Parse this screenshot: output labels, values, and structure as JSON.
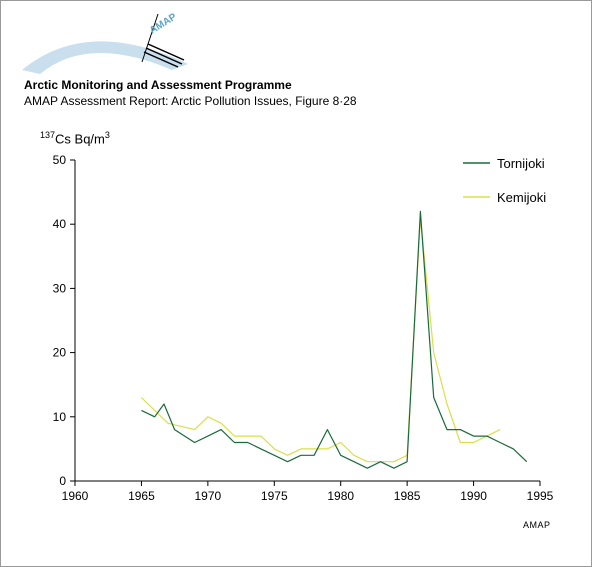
{
  "header": {
    "logo_text": "AMAP",
    "title": "Arctic Monitoring and Assessment Programme",
    "subtitle": "AMAP Assessment Report: Arctic Pollution Issues, Figure 8·28"
  },
  "credit": "AMAP",
  "colors": {
    "tornijoki": "#1a6b3a",
    "kemijoki": "#d9e04a",
    "arc": "#c9dfee"
  },
  "chart_data": {
    "type": "line",
    "ylabel_sup": "137",
    "ylabel_main": "Cs Bq/m",
    "ylabel_exp": "3",
    "xlim": [
      1960,
      1995
    ],
    "ylim": [
      0,
      50
    ],
    "xticks": [
      1960,
      1965,
      1970,
      1975,
      1980,
      1985,
      1990,
      1995
    ],
    "yticks": [
      0,
      10,
      20,
      30,
      40,
      50
    ],
    "grid": false,
    "legend": "top-right",
    "series": [
      {
        "name": "Tornijoki",
        "color": "#1a6b3a",
        "x": [
          1965,
          1966,
          1966.7,
          1967.5,
          1969,
          1970,
          1971,
          1972,
          1973,
          1974,
          1975,
          1976,
          1977,
          1978,
          1979,
          1980,
          1981,
          1982,
          1983,
          1984,
          1985,
          1986,
          1987,
          1988,
          1989,
          1990,
          1991,
          1992,
          1993,
          1994
        ],
        "y": [
          11,
          10,
          12,
          8,
          6,
          7,
          8,
          6,
          6,
          5,
          4,
          3,
          4,
          4,
          8,
          4,
          3,
          2,
          3,
          2,
          3,
          42,
          13,
          8,
          8,
          7,
          7,
          6,
          5,
          3
        ]
      },
      {
        "name": "Kemijoki",
        "color": "#d9e04a",
        "x": [
          1965,
          1966,
          1967,
          1968,
          1969,
          1970,
          1971,
          1972,
          1973,
          1974,
          1975,
          1976,
          1977,
          1978,
          1979,
          1980,
          1981,
          1982,
          1983,
          1984,
          1985,
          1986,
          1987,
          1988,
          1989,
          1990,
          1991,
          1992
        ],
        "y": [
          13,
          11,
          9,
          8.5,
          8,
          10,
          9,
          7,
          7,
          7,
          5,
          4,
          5,
          5,
          5,
          6,
          4,
          3,
          3,
          3,
          4,
          41,
          20,
          12,
          6,
          6,
          7,
          8
        ]
      }
    ]
  }
}
